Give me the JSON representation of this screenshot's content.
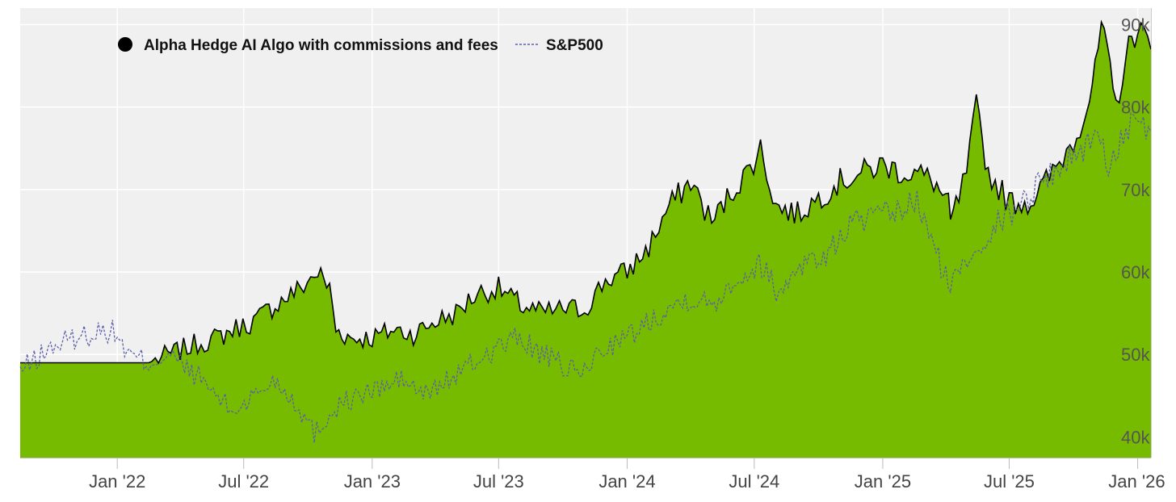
{
  "chart_data": {
    "type": "area",
    "title": "",
    "xlabel": "",
    "ylabel": "",
    "x_range": [
      "2021-08-15",
      "2026-01-20"
    ],
    "ylim": [
      37.5,
      92
    ],
    "y_ticks": [
      40,
      50,
      60,
      70,
      80,
      90
    ],
    "y_tick_labels": [
      "40k",
      "50k",
      "60k",
      "70k",
      "80k",
      "90k"
    ],
    "x_ticks": [
      "2022-01-01",
      "2022-07-01",
      "2023-01-01",
      "2023-07-01",
      "2024-01-01",
      "2024-07-01",
      "2025-01-01",
      "2025-07-01",
      "2026-01-01"
    ],
    "x_tick_labels": [
      "Jan '22",
      "Jul '22",
      "Jan '23",
      "Jul '23",
      "Jan '24",
      "Jul '24",
      "Jan '25",
      "Jul '25",
      "Jan '26"
    ],
    "grid": true,
    "legend_position": "top-left",
    "series": [
      {
        "name": "Alpha Hedge AI Algo with commissions and fees",
        "style": "area",
        "color": "#77bb00",
        "line_color": "#000000",
        "x": [
          "2021-08-15",
          "2021-10-01",
          "2021-12-01",
          "2022-01-15",
          "2022-02-15",
          "2022-03-01",
          "2022-04-01",
          "2022-05-01",
          "2022-05-25",
          "2022-06-15",
          "2022-07-15",
          "2022-08-15",
          "2022-09-20",
          "2022-10-15",
          "2022-11-01",
          "2022-11-10",
          "2022-12-01",
          "2023-01-01",
          "2023-02-01",
          "2023-03-01",
          "2023-04-01",
          "2023-05-01",
          "2023-06-01",
          "2023-07-01",
          "2023-08-01",
          "2023-09-01",
          "2023-10-01",
          "2023-11-01",
          "2023-12-01",
          "2024-01-01",
          "2024-02-01",
          "2024-03-01",
          "2024-04-01",
          "2024-05-01",
          "2024-06-01",
          "2024-06-20",
          "2024-07-10",
          "2024-08-01",
          "2024-09-01",
          "2024-10-01",
          "2024-11-01",
          "2024-12-01",
          "2025-01-01",
          "2025-02-01",
          "2025-02-20",
          "2025-03-15",
          "2025-04-05",
          "2025-04-08",
          "2025-04-20",
          "2025-05-01",
          "2025-05-15",
          "2025-06-01",
          "2025-07-01",
          "2025-08-01",
          "2025-09-01",
          "2025-10-01",
          "2025-10-20",
          "2025-11-01",
          "2025-11-10",
          "2025-12-01",
          "2025-12-15",
          "2026-01-01",
          "2026-01-20"
        ],
        "values": [
          49,
          49,
          49,
          49,
          49,
          49.5,
          50.5,
          51.5,
          52,
          53,
          54,
          56,
          58,
          60,
          58,
          53,
          52,
          52,
          53,
          52.5,
          54,
          55,
          57.5,
          58,
          56,
          55,
          55.5,
          55.5,
          59,
          60,
          63,
          68,
          71,
          66,
          70,
          72,
          75,
          68,
          67,
          69,
          71,
          72,
          73,
          72,
          72,
          71,
          68,
          66,
          69,
          72,
          80,
          72,
          68.5,
          68.5,
          72,
          76,
          80,
          84,
          90,
          80,
          86,
          90,
          87
        ]
      },
      {
        "name": "S&P500",
        "style": "dashed-line",
        "color": "#5b5fa8",
        "x": [
          "2021-08-15",
          "2021-10-01",
          "2021-11-01",
          "2021-12-15",
          "2022-01-01",
          "2022-01-15",
          "2022-02-15",
          "2022-03-15",
          "2022-05-01",
          "2022-06-15",
          "2022-07-15",
          "2022-08-15",
          "2022-09-15",
          "2022-10-10",
          "2022-11-15",
          "2022-12-15",
          "2023-01-15",
          "2023-02-15",
          "2023-03-15",
          "2023-05-01",
          "2023-07-01",
          "2023-07-31",
          "2023-09-01",
          "2023-10-25",
          "2023-12-01",
          "2024-01-01",
          "2024-02-15",
          "2024-03-31",
          "2024-05-01",
          "2024-06-01",
          "2024-07-15",
          "2024-08-05",
          "2024-09-01",
          "2024-10-15",
          "2024-11-15",
          "2024-12-15",
          "2025-01-15",
          "2025-02-19",
          "2025-03-15",
          "2025-04-08",
          "2025-04-25",
          "2025-05-15",
          "2025-06-15",
          "2025-07-15",
          "2025-08-15",
          "2025-09-15",
          "2025-10-15",
          "2025-11-01",
          "2025-11-20",
          "2025-12-15",
          "2026-01-20"
        ],
        "values": [
          48,
          51,
          52,
          53,
          52.5,
          50,
          49,
          50,
          47,
          43,
          45,
          47,
          44,
          40.5,
          44,
          45,
          46,
          47,
          45,
          47.5,
          51,
          52,
          50,
          47.5,
          51,
          52,
          55,
          57,
          56,
          59,
          61,
          57,
          61,
          62,
          66,
          66.5,
          67,
          68.5,
          63,
          58,
          61,
          63,
          66,
          68,
          71,
          73,
          75,
          77,
          73,
          77.5,
          77
        ]
      }
    ]
  }
}
